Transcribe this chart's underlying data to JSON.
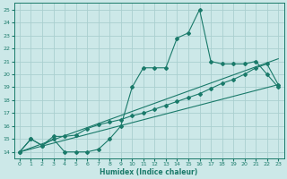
{
  "xlabel": "Humidex (Indice chaleur)",
  "bg_color": "#cce8e8",
  "grid_color": "#aacfcf",
  "line_color": "#1a7a6a",
  "xlim": [
    -0.5,
    23.5
  ],
  "ylim": [
    13.5,
    25.5
  ],
  "xticks": [
    0,
    1,
    2,
    3,
    4,
    5,
    6,
    7,
    8,
    9,
    10,
    11,
    12,
    13,
    14,
    15,
    16,
    17,
    18,
    19,
    20,
    21,
    22,
    23
  ],
  "yticks": [
    14,
    15,
    16,
    17,
    18,
    19,
    20,
    21,
    22,
    23,
    24,
    25
  ],
  "line1_x": [
    0,
    1,
    2,
    3,
    4,
    5,
    6,
    7,
    8,
    9,
    10,
    11,
    12,
    13,
    14,
    15,
    16,
    17,
    18,
    19,
    20,
    21,
    22,
    23
  ],
  "line1_y": [
    14,
    15,
    14.5,
    15,
    14,
    14,
    14,
    14.2,
    15,
    16,
    19,
    20.5,
    20.5,
    20.5,
    22.8,
    23.2,
    25,
    21,
    20.8,
    20.8,
    20.8,
    21,
    20,
    19
  ],
  "line2_x": [
    0,
    1,
    2,
    3,
    4,
    5,
    6,
    7,
    8,
    9,
    10,
    11,
    12,
    13,
    14,
    15,
    16,
    17,
    18,
    19,
    20,
    21,
    22,
    23
  ],
  "line2_y": [
    14,
    15,
    14.5,
    15.2,
    15.2,
    15.3,
    15.8,
    16.1,
    16.3,
    16.5,
    16.8,
    17.0,
    17.3,
    17.6,
    17.9,
    18.2,
    18.5,
    18.9,
    19.3,
    19.6,
    20.0,
    20.5,
    20.8,
    19.2
  ],
  "line3_x": [
    0,
    23
  ],
  "line3_y": [
    14,
    19.2
  ],
  "line4_x": [
    0,
    23
  ],
  "line4_y": [
    14,
    21.2
  ]
}
